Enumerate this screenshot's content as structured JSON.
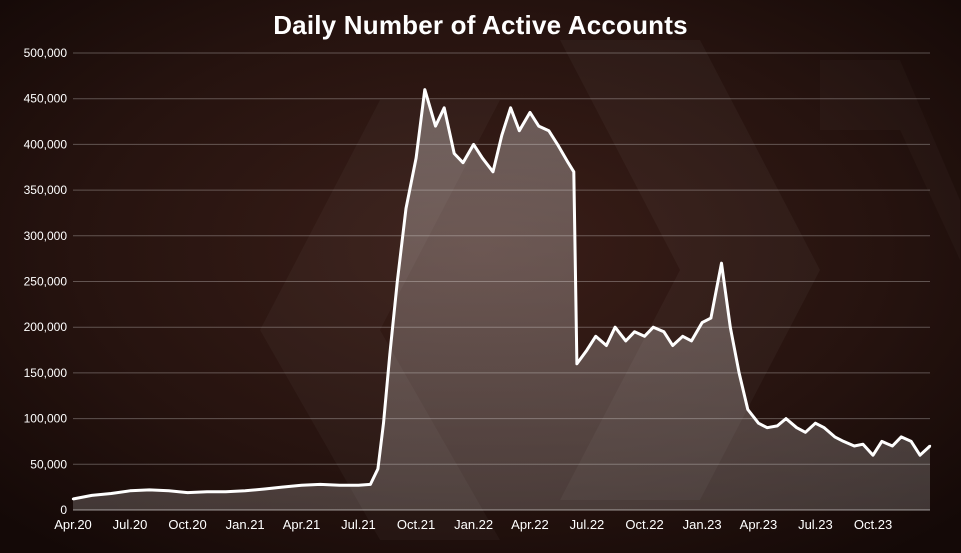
{
  "chart_data": {
    "type": "area",
    "title": "Daily Number of Active Accounts",
    "xlabel": "",
    "ylabel": "",
    "ylim": [
      0,
      500000
    ],
    "yticks": [
      "0",
      "50,000",
      "100,000",
      "150,000",
      "200,000",
      "250,000",
      "300,000",
      "350,000",
      "400,000",
      "450,000",
      "500,000"
    ],
    "ytick_values": [
      0,
      50000,
      100000,
      150000,
      200000,
      250000,
      300000,
      350000,
      400000,
      450000,
      500000
    ],
    "xticks": [
      "Apr.20",
      "Jul.20",
      "Oct.20",
      "Jan.21",
      "Apr.21",
      "Jul.21",
      "Oct.21",
      "Jan.22",
      "Apr.22",
      "Jul.22",
      "Oct.22",
      "Jan.23",
      "Apr.23",
      "Jul.23",
      "Oct.23"
    ],
    "grid": "horizontal",
    "legend": "none",
    "series": [
      {
        "name": "",
        "x": [
          "2020-04-01",
          "2020-05-01",
          "2020-06-01",
          "2020-07-01",
          "2020-08-01",
          "2020-09-01",
          "2020-10-01",
          "2020-11-01",
          "2020-12-01",
          "2021-01-01",
          "2021-02-01",
          "2021-03-01",
          "2021-04-01",
          "2021-05-01",
          "2021-06-01",
          "2021-07-01",
          "2021-07-20",
          "2021-08-01",
          "2021-08-10",
          "2021-08-20",
          "2021-09-01",
          "2021-09-15",
          "2021-10-01",
          "2021-10-15",
          "2021-11-01",
          "2021-11-15",
          "2021-12-01",
          "2021-12-15",
          "2022-01-01",
          "2022-01-15",
          "2022-02-01",
          "2022-02-15",
          "2022-03-01",
          "2022-03-15",
          "2022-04-01",
          "2022-04-15",
          "2022-05-01",
          "2022-05-15",
          "2022-06-01",
          "2022-06-10",
          "2022-06-15",
          "2022-07-01",
          "2022-07-15",
          "2022-08-01",
          "2022-08-15",
          "2022-09-01",
          "2022-09-15",
          "2022-10-01",
          "2022-10-15",
          "2022-11-01",
          "2022-11-15",
          "2022-12-01",
          "2022-12-15",
          "2023-01-01",
          "2023-01-15",
          "2023-02-01",
          "2023-02-15",
          "2023-03-01",
          "2023-03-15",
          "2023-04-01",
          "2023-04-15",
          "2023-05-01",
          "2023-05-15",
          "2023-06-01",
          "2023-06-15",
          "2023-07-01",
          "2023-07-15",
          "2023-08-01",
          "2023-08-15",
          "2023-09-01",
          "2023-09-15",
          "2023-10-01",
          "2023-10-15",
          "2023-11-01",
          "2023-11-15",
          "2023-12-01",
          "2023-12-15",
          "2023-12-31"
        ],
        "values": [
          12000,
          16000,
          18000,
          21000,
          22000,
          21000,
          19000,
          20000,
          20000,
          21000,
          23000,
          25000,
          27000,
          28000,
          27000,
          27000,
          28000,
          45000,
          95000,
          170000,
          250000,
          330000,
          385000,
          460000,
          420000,
          440000,
          390000,
          380000,
          400000,
          385000,
          370000,
          410000,
          440000,
          415000,
          435000,
          420000,
          415000,
          400000,
          380000,
          370000,
          160000,
          175000,
          190000,
          180000,
          200000,
          185000,
          195000,
          190000,
          200000,
          195000,
          180000,
          190000,
          185000,
          205000,
          210000,
          270000,
          200000,
          150000,
          110000,
          95000,
          90000,
          92000,
          100000,
          90000,
          85000,
          95000,
          90000,
          80000,
          75000,
          70000,
          72000,
          60000,
          75000,
          70000,
          80000,
          75000,
          60000,
          70000
        ]
      }
    ]
  }
}
